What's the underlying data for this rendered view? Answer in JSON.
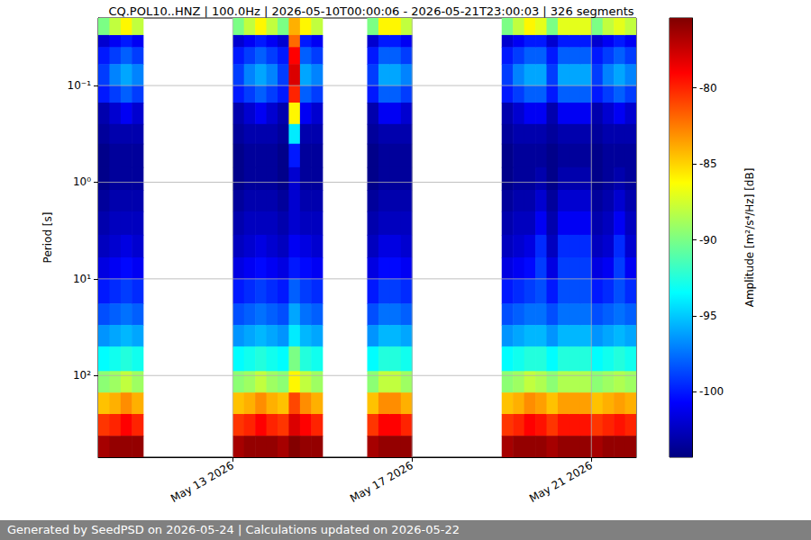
{
  "chart_data": {
    "type": "spectrogram",
    "title": "CQ.POL10..HNZ | 100.0Hz | 2026-05-10T00:00:06 - 2026-05-21T23:00:03 | 326 segments",
    "y_label": "Period [s]",
    "footer": "Generated by SeedPSD on 2026-05-24 | Calculations updated on 2026-05-22",
    "log": "y",
    "grid": true,
    "xlim": [
      "2026-05-10T00:00",
      "2026-05-22T00:00"
    ],
    "xticks": [
      {
        "value": "2026-05-13T00:00",
        "label": "May 13 2026"
      },
      {
        "value": "2026-05-17T00:00",
        "label": "May 17 2026"
      },
      {
        "value": "2026-05-21T00:00",
        "label": "May 21 2026"
      }
    ],
    "ylim": [
      0.02,
      700
    ],
    "yticks": [
      {
        "value": 0.1,
        "label": "10⁻¹"
      },
      {
        "value": 1,
        "label": "10⁰"
      },
      {
        "value": 10,
        "label": "10¹"
      },
      {
        "value": 100,
        "label": "10²"
      }
    ],
    "colorbar": {
      "label": "Amplitude [m²/s⁴/Hz] [dB]",
      "range": [
        -104.3,
        -75.4
      ],
      "ticks": [
        -100,
        -95,
        -90,
        -85,
        -80
      ]
    },
    "x_edges": [
      "2026-05-10T00:00",
      "2026-05-10T06:00",
      "2026-05-10T12:00",
      "2026-05-10T18:00",
      "2026-05-11T00:00",
      "2026-05-11T06:00",
      "2026-05-11T12:00",
      "2026-05-11T18:00",
      "2026-05-12T00:00",
      "2026-05-12T06:00",
      "2026-05-12T12:00",
      "2026-05-12T18:00",
      "2026-05-13T00:00",
      "2026-05-13T06:00",
      "2026-05-13T12:00",
      "2026-05-13T18:00",
      "2026-05-14T00:00",
      "2026-05-14T06:00",
      "2026-05-14T12:00",
      "2026-05-14T18:00",
      "2026-05-15T00:00",
      "2026-05-15T06:00",
      "2026-05-15T12:00",
      "2026-05-15T18:00",
      "2026-05-16T00:00",
      "2026-05-16T06:00",
      "2026-05-16T12:00",
      "2026-05-16T18:00",
      "2026-05-17T00:00",
      "2026-05-17T06:00",
      "2026-05-17T12:00",
      "2026-05-17T18:00",
      "2026-05-18T00:00",
      "2026-05-18T06:00",
      "2026-05-18T12:00",
      "2026-05-18T18:00",
      "2026-05-19T00:00",
      "2026-05-19T06:00",
      "2026-05-19T12:00",
      "2026-05-19T18:00",
      "2026-05-20T00:00",
      "2026-05-20T06:00",
      "2026-05-20T12:00",
      "2026-05-20T18:00",
      "2026-05-21T00:00",
      "2026-05-21T06:00",
      "2026-05-21T12:00",
      "2026-05-21T18:00",
      "2026-05-22T00:00"
    ],
    "y_edges": [
      0.02,
      0.03,
      0.04,
      0.06,
      0.1,
      0.15,
      0.25,
      0.4,
      0.7,
      1.2,
      2,
      3.5,
      6,
      10,
      18,
      30,
      50,
      90,
      150,
      250,
      420,
      700
    ],
    "z": [
      [
        -90,
        -102,
        -100,
        -99,
        -100,
        -103,
        -103.5,
        -104,
        -104,
        -103.5,
        -103,
        -102.5,
        -101.5,
        -100,
        -98.5,
        -96.5,
        -93.5,
        -89.5,
        -84.5,
        -80.5,
        -76.5
      ],
      [
        -88,
        -101,
        -99,
        -97,
        -99,
        -102,
        -103,
        -103.5,
        -103.5,
        -103,
        -102.5,
        -102,
        -101,
        -99.5,
        -98,
        -96,
        -93,
        -89,
        -84,
        -80,
        -76
      ],
      [
        -86,
        -100,
        -98,
        -96,
        -98,
        -101,
        -103,
        -103.5,
        -103.5,
        -103,
        -102.5,
        -101.5,
        -100.5,
        -99,
        -97.5,
        -95.5,
        -92.5,
        -88,
        -83,
        -79,
        -76
      ],
      [
        -88,
        -101,
        -99,
        -97,
        -99,
        -102,
        -103,
        -103.5,
        -103.5,
        -103,
        -102.5,
        -102,
        -101,
        -99.5,
        -98,
        -96,
        -93,
        -89,
        -84,
        -80,
        -76
      ],
      null,
      null,
      null,
      null,
      null,
      null,
      null,
      null,
      [
        -90,
        -102,
        -100,
        -99,
        -100,
        -103,
        -103.5,
        -104,
        -104,
        -103.5,
        -103,
        -102.5,
        -101.5,
        -100,
        -98.5,
        -96.5,
        -93.5,
        -89.5,
        -84.5,
        -80.5,
        -76.5
      ],
      [
        -88,
        -101,
        -99,
        -97,
        -99,
        -102,
        -103,
        -103.5,
        -103.5,
        -103,
        -102.5,
        -102,
        -101,
        -99.5,
        -98,
        -96,
        -93,
        -89,
        -84,
        -80,
        -76
      ],
      [
        -86,
        -100,
        -98,
        -96,
        -98,
        -101,
        -103,
        -103.5,
        -103.5,
        -103,
        -102.5,
        -101.5,
        -100.5,
        -99,
        -97.5,
        -95.5,
        -92.5,
        -88,
        -83,
        -79,
        -76
      ],
      [
        -88,
        -101,
        -99,
        -97,
        -99,
        -102,
        -103,
        -103.5,
        -103.5,
        -103,
        -102.5,
        -102,
        -101,
        -99.5,
        -98,
        -96,
        -93,
        -89,
        -84,
        -80,
        -76
      ],
      [
        -90,
        -102,
        -100,
        -99,
        -100,
        -103,
        -103.5,
        -104,
        -104,
        -103.5,
        -103,
        -102.5,
        -101.5,
        -100,
        -98.5,
        -96.5,
        -93.5,
        -89.5,
        -84.5,
        -80.5,
        -76.5
      ],
      [
        -84,
        -82,
        -79,
        -78,
        -80,
        -86,
        -94,
        -100,
        -102,
        -102,
        -102,
        -101,
        -100,
        -98,
        -96,
        -94,
        -90,
        -86,
        -81,
        -78,
        -75.5
      ],
      [
        -86,
        -100,
        -98,
        -96,
        -98,
        -101,
        -103,
        -103.5,
        -103.5,
        -103,
        -102.5,
        -101.5,
        -100.5,
        -99,
        -97.5,
        -95.5,
        -92.5,
        -88,
        -83,
        -79,
        -76
      ],
      [
        -88,
        -101,
        -99,
        -97,
        -99,
        -102,
        -103,
        -103.5,
        -103.5,
        -103,
        -102.5,
        -102,
        -101,
        -99.5,
        -98,
        -96,
        -93,
        -89,
        -84,
        -80,
        -76
      ],
      null,
      null,
      null,
      null,
      [
        -90,
        -102,
        -100,
        -99,
        -100,
        -103,
        -103.5,
        -104,
        -104,
        -103.5,
        -103,
        -102.5,
        -101.5,
        -100,
        -98.5,
        -96.5,
        -93.5,
        -89.5,
        -84.5,
        -80.5,
        -76.5
      ],
      [
        -86,
        -100,
        -98,
        -96,
        -98,
        -101,
        -103,
        -103.5,
        -103.5,
        -103,
        -102.5,
        -101.5,
        -100.5,
        -99,
        -97.5,
        -95.5,
        -92.5,
        -88,
        -83,
        -79,
        -76
      ],
      [
        -86,
        -100,
        -98,
        -96,
        -98,
        -101,
        -103,
        -103.5,
        -103.5,
        -103,
        -102.5,
        -101.5,
        -100.5,
        -99,
        -97.5,
        -95.5,
        -92.5,
        -88,
        -83,
        -79,
        -76
      ],
      [
        -88,
        -101,
        -99,
        -97,
        -99,
        -102,
        -103,
        -103.5,
        -103.5,
        -103,
        -102.5,
        -102,
        -101,
        -99.5,
        -98,
        -96,
        -93,
        -89,
        -84,
        -80,
        -76
      ],
      null,
      null,
      null,
      null,
      null,
      null,
      null,
      null,
      [
        -90,
        -102,
        -100,
        -99,
        -100,
        -103,
        -103.5,
        -104,
        -104,
        -103.5,
        -103,
        -102.5,
        -101.5,
        -100,
        -98.5,
        -96.5,
        -93.5,
        -89.5,
        -84.5,
        -80.5,
        -76.5
      ],
      [
        -88,
        -101,
        -99,
        -97,
        -99,
        -102,
        -103,
        -103.5,
        -103.5,
        -103,
        -102.5,
        -102,
        -101,
        -99.5,
        -98,
        -96,
        -93,
        -89,
        -84,
        -80,
        -76
      ],
      [
        -86,
        -100,
        -98,
        -96,
        -98,
        -101,
        -103,
        -103.5,
        -103.5,
        -103,
        -102.5,
        -101.5,
        -100.5,
        -99,
        -97.5,
        -95.5,
        -92.5,
        -88,
        -83,
        -79,
        -76
      ],
      [
        -87,
        -100,
        -98,
        -96,
        -98,
        -101,
        -103,
        -103.5,
        -103,
        -102,
        -101,
        -99.5,
        -99,
        -98.5,
        -97.5,
        -95.5,
        -92.5,
        -88.5,
        -83.5,
        -79.5,
        -76
      ],
      [
        -90,
        -102,
        -100,
        -99,
        -100,
        -103,
        -103.5,
        -104,
        -104,
        -103.5,
        -103,
        -102.5,
        -101.5,
        -100,
        -98.5,
        -96.5,
        -93.5,
        -89.5,
        -84.5,
        -80.5,
        -76.5
      ],
      [
        -87,
        -100,
        -98,
        -96,
        -98,
        -101,
        -103,
        -103.5,
        -103,
        -102,
        -101,
        -99.5,
        -99,
        -98.5,
        -97.5,
        -95.5,
        -92.5,
        -88.5,
        -83.5,
        -79.5,
        -76
      ],
      [
        -87,
        -100,
        -98,
        -96,
        -98,
        -101,
        -103,
        -103.5,
        -103,
        -102,
        -101,
        -99.5,
        -99,
        -98.5,
        -97.5,
        -95.5,
        -92.5,
        -88.5,
        -83.5,
        -79.5,
        -76
      ],
      [
        -87,
        -100,
        -98,
        -96,
        -98,
        -101,
        -103,
        -103.5,
        -103,
        -102,
        -101,
        -99.5,
        -99,
        -98.5,
        -97.5,
        -95.5,
        -92.5,
        -88.5,
        -83.5,
        -79.5,
        -76
      ],
      [
        -90,
        -102,
        -100,
        -99,
        -100,
        -103,
        -103.5,
        -104,
        -104,
        -103.5,
        -103,
        -102.5,
        -101.5,
        -100,
        -98.5,
        -96.5,
        -93.5,
        -89.5,
        -84.5,
        -80.5,
        -76.5
      ],
      [
        -88,
        -101,
        -99,
        -97,
        -99,
        -102,
        -103,
        -103.5,
        -103.5,
        -103,
        -102.5,
        -102,
        -101,
        -99.5,
        -98,
        -96,
        -93,
        -89,
        -84,
        -80,
        -76
      ],
      [
        -87,
        -100,
        -98,
        -96,
        -98,
        -101,
        -103,
        -103.5,
        -103,
        -102,
        -101,
        -99.5,
        -99,
        -98.5,
        -97.5,
        -95.5,
        -92.5,
        -88.5,
        -83.5,
        -79.5,
        -76
      ],
      [
        -88,
        -101,
        -99,
        -97,
        -99,
        -102,
        -103,
        -103.5,
        -103.5,
        -103,
        -102.5,
        -102,
        -101,
        -99.5,
        -98,
        -96,
        -93,
        -89,
        -84,
        -80,
        -76
      ]
    ]
  }
}
